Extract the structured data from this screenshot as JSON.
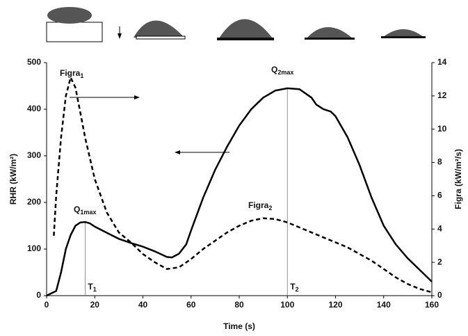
{
  "chart_data": {
    "type": "line",
    "xlabel": "Time (s)",
    "ylabel": "RHR (kW/m²)",
    "y2label": "Figra (kW/m²/s)",
    "xlim": [
      0,
      160
    ],
    "xticks": [
      0,
      20,
      40,
      60,
      80,
      100,
      120,
      140,
      160
    ],
    "ylim": [
      0,
      500
    ],
    "yticks": [
      0,
      100,
      200,
      300,
      400,
      500
    ],
    "y2lim": [
      0,
      14
    ],
    "y2ticks": [
      0,
      2,
      4,
      6,
      8,
      10,
      12,
      14
    ],
    "series": [
      {
        "name": "RHR",
        "color": "#000000",
        "dash": false,
        "x": [
          0,
          2,
          4,
          6,
          8,
          10,
          12,
          14,
          16,
          18,
          20,
          25,
          30,
          35,
          40,
          45,
          50,
          52,
          55,
          58,
          60,
          65,
          70,
          75,
          80,
          85,
          90,
          95,
          100,
          105,
          110,
          112,
          115,
          118,
          120,
          125,
          130,
          135,
          140,
          145,
          150,
          155,
          160
        ],
        "values": [
          0,
          5,
          10,
          50,
          100,
          130,
          150,
          157,
          158,
          155,
          148,
          135,
          122,
          113,
          105,
          95,
          83,
          82,
          90,
          110,
          140,
          210,
          270,
          320,
          365,
          400,
          425,
          440,
          445,
          443,
          425,
          410,
          400,
          395,
          385,
          340,
          280,
          210,
          150,
          110,
          80,
          55,
          30
        ]
      },
      {
        "name": "Figra",
        "color": "#000000",
        "dash": true,
        "axis": "y2",
        "x": [
          3,
          4,
          6,
          8,
          10,
          12,
          14,
          16,
          20,
          25,
          30,
          35,
          40,
          45,
          50,
          55,
          60,
          65,
          70,
          75,
          80,
          85,
          90,
          95,
          100,
          105,
          110,
          115,
          120,
          125,
          130,
          135,
          140,
          145,
          150,
          155,
          160
        ],
        "values": [
          3.6,
          6,
          9.5,
          12,
          13.1,
          12.5,
          11,
          9.5,
          7,
          5,
          3.8,
          3.2,
          2.5,
          2.0,
          1.6,
          1.7,
          2.2,
          2.8,
          3.3,
          3.8,
          4.2,
          4.5,
          4.65,
          4.6,
          4.4,
          4.1,
          3.8,
          3.5,
          3.2,
          2.9,
          2.5,
          2.1,
          1.6,
          1.1,
          0.7,
          0.4,
          0.2
        ]
      }
    ],
    "annotations": [
      {
        "text": "Figra",
        "sub": "1"
      },
      {
        "text": "Q",
        "sub": "1max"
      },
      {
        "text": "Q",
        "sub": "2max"
      },
      {
        "text": "Figra",
        "sub": "2"
      }
    ],
    "vlines": [
      {
        "x": 16,
        "top": 158,
        "text": "T",
        "sub": "1"
      },
      {
        "x": 100,
        "top": 445,
        "text": "T",
        "sub": "2"
      }
    ]
  }
}
